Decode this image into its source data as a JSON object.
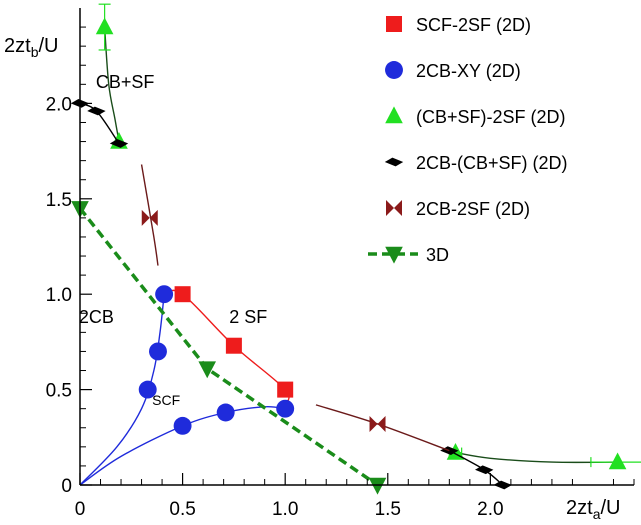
{
  "chart_data": {
    "type": "scatter",
    "xlim": [
      0,
      2.7
    ],
    "ylim": [
      0,
      2.5
    ],
    "x_ticks": [
      {
        "value": 0,
        "label": "0"
      },
      {
        "value": 0.5,
        "label": "0.5"
      },
      {
        "value": 1.0,
        "label": "1.0"
      },
      {
        "value": 1.5,
        "label": "1.5"
      },
      {
        "value": 2.0,
        "label": "2.0"
      }
    ],
    "y_ticks": [
      {
        "value": 0,
        "label": "0"
      },
      {
        "value": 0.5,
        "label": "0.5"
      },
      {
        "value": 1.0,
        "label": "1.0"
      },
      {
        "value": 1.5,
        "label": "1.5"
      },
      {
        "value": 2.0,
        "label": "2.0"
      }
    ],
    "xlabel": {
      "main": "2zt",
      "sub": "a",
      "tail": "/U"
    },
    "ylabel": {
      "main": "2zt",
      "sub": "b",
      "tail": "/U"
    },
    "grid": false,
    "legend_position": "top-right",
    "region_labels": [
      {
        "text": "CB+SF",
        "x": 0.22,
        "y": 2.08,
        "size": "large"
      },
      {
        "text": "2CB",
        "x": 0.08,
        "y": 0.85,
        "size": "large"
      },
      {
        "text": "2 SF",
        "x": 0.82,
        "y": 0.85,
        "size": "large"
      },
      {
        "text": "SCF",
        "x": 0.42,
        "y": 0.42,
        "size": "small"
      }
    ],
    "series": [
      {
        "name": "SCF-2SF (2D)",
        "marker": "square",
        "color": "#ee1c1c",
        "line_color": "#ee1c1c",
        "line_dash": "",
        "points": [
          [
            0.5,
            1.0
          ],
          [
            0.75,
            0.73
          ],
          [
            1.0,
            0.5
          ]
        ],
        "line": [
          [
            0.41,
            1.0
          ],
          [
            0.5,
            1.0
          ],
          [
            0.75,
            0.73
          ],
          [
            1.0,
            0.5
          ],
          [
            1.0,
            0.42
          ]
        ]
      },
      {
        "name": "2CB-XY (2D)",
        "marker": "circle",
        "color": "#1f2bdb",
        "line_color": "#1f2bdb",
        "line_dash": "",
        "points": [
          [
            0.33,
            0.5
          ],
          [
            0.38,
            0.7
          ],
          [
            0.41,
            1.0
          ],
          [
            0.5,
            0.31
          ],
          [
            0.71,
            0.38
          ],
          [
            1.0,
            0.4
          ]
        ],
        "line": [
          [
            0.0,
            0.0
          ],
          [
            0.18,
            0.2
          ],
          [
            0.3,
            0.4
          ],
          [
            0.36,
            0.6
          ],
          [
            0.39,
            0.8
          ],
          [
            0.41,
            1.0
          ]
        ],
        "line2": [
          [
            0.0,
            0.0
          ],
          [
            0.2,
            0.15
          ],
          [
            0.5,
            0.31
          ],
          [
            0.71,
            0.38
          ],
          [
            0.9,
            0.41
          ],
          [
            1.0,
            0.4
          ]
        ]
      },
      {
        "name": "(CB+SF)-2SF (2D)",
        "marker": "triangle-up",
        "color": "#22e022",
        "line_color": "#1a4d1a",
        "line_dash": "",
        "points": [
          [
            0.12,
            2.4
          ],
          [
            0.19,
            1.8
          ],
          [
            1.83,
            0.17
          ],
          [
            2.62,
            0.12
          ]
        ],
        "errors_x": [
          0,
          0,
          0.03,
          0.13
        ],
        "errors_y": [
          0.12,
          0,
          0,
          0
        ],
        "line": [
          [
            0.12,
            2.4
          ],
          [
            0.14,
            2.1
          ],
          [
            0.17,
            1.92
          ],
          [
            0.19,
            1.8
          ]
        ],
        "line2": [
          [
            1.83,
            0.17
          ],
          [
            2.0,
            0.14
          ],
          [
            2.3,
            0.12
          ],
          [
            2.62,
            0.12
          ]
        ]
      },
      {
        "name": "2CB-(CB+SF) (2D)",
        "marker": "diamond",
        "color": "#000000",
        "line_color": "#000000",
        "line_dash": "",
        "points": [
          [
            0.0,
            2.0
          ],
          [
            0.08,
            1.96
          ],
          [
            0.19,
            1.79
          ],
          [
            1.8,
            0.18
          ],
          [
            1.97,
            0.08
          ],
          [
            2.06,
            0.0
          ]
        ],
        "line": [
          [
            0.0,
            2.0
          ],
          [
            0.08,
            1.96
          ],
          [
            0.19,
            1.79
          ]
        ],
        "line2": [
          [
            1.8,
            0.18
          ],
          [
            1.97,
            0.08
          ],
          [
            2.06,
            0.0
          ]
        ]
      },
      {
        "name": "2CB-2SF (2D)",
        "marker": "bowtie",
        "color": "#8b1a1a",
        "line_color": "#6b1a1a",
        "line_dash": "",
        "points": [
          [
            0.34,
            1.4
          ],
          [
            1.45,
            0.32
          ]
        ],
        "line": [
          [
            0.3,
            1.68
          ],
          [
            0.36,
            1.3
          ],
          [
            0.38,
            1.15
          ]
        ],
        "line2": [
          [
            1.15,
            0.42
          ],
          [
            1.45,
            0.32
          ],
          [
            1.8,
            0.18
          ]
        ]
      },
      {
        "name": "3D",
        "marker": "triangle-down",
        "color": "#1a8c1a",
        "line_color": "#1a8c1a",
        "line_dash": "9,5",
        "points": [
          [
            0.0,
            1.45
          ],
          [
            0.62,
            0.61
          ],
          [
            1.45,
            0.0
          ]
        ],
        "line": [
          [
            0.0,
            1.45
          ],
          [
            0.62,
            0.61
          ],
          [
            1.45,
            0.0
          ]
        ]
      }
    ]
  }
}
